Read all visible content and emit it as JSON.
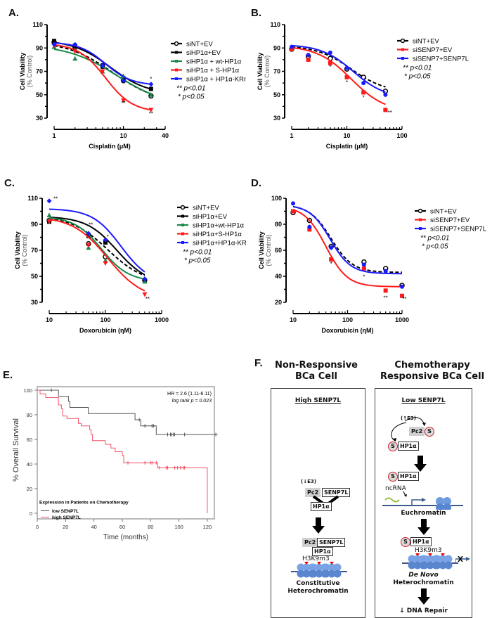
{
  "panels": {
    "A": "A.",
    "B": "B.",
    "C": "C.",
    "D": "D.",
    "E": "E.",
    "F": "F."
  },
  "colors": {
    "black": "#000000",
    "green": "#1a8a4a",
    "red": "#ff1a1a",
    "blue": "#1a1aff",
    "km_low": "#555555",
    "km_high": "#ee5566"
  },
  "chart_data": [
    {
      "id": "A",
      "type": "line",
      "xscale": "log",
      "xlabel": "Cisplatin (μM)",
      "ylabel": "Cell Viability",
      "ylabel2": "(% Control)",
      "xlim": [
        1,
        40
      ],
      "ylim": [
        30,
        110
      ],
      "xticks": [
        1,
        10,
        40
      ],
      "yticks": [
        30,
        50,
        70,
        90,
        110
      ],
      "legend_position": "right",
      "x": [
        1,
        2,
        5,
        10,
        25
      ],
      "series": [
        {
          "name": "siNT+EV",
          "color": "#000000",
          "marker": "open-circle",
          "dashed": true,
          "values": [
            95,
            91,
            75,
            62,
            49
          ],
          "fit": {
            "top": 96,
            "bottom": 42,
            "ec50": 7,
            "hill": 1.3
          }
        },
        {
          "name": "siHP1α+EV",
          "color": "#000000",
          "marker": "square",
          "dashed": false,
          "values": [
            96,
            92,
            74,
            64,
            55
          ],
          "fit": {
            "top": 97,
            "bottom": 50,
            "ec50": 6.5,
            "hill": 1.6
          }
        },
        {
          "name": "siHP1α + wt-HP1α",
          "color": "#1a8a4a",
          "marker": "triangle",
          "dashed": false,
          "values": [
            91,
            81,
            70,
            66,
            50
          ],
          "fit": {
            "top": 93,
            "bottom": 40,
            "ec50": 8,
            "hill": 1.2
          }
        },
        {
          "name": "siHP1α + S-HP1α",
          "color": "#ff1a1a",
          "marker": "inv-triangle",
          "dashed": false,
          "values": [
            92,
            87,
            70,
            45,
            37
          ],
          "fit": {
            "top": 94,
            "bottom": 35,
            "ec50": 5.5,
            "hill": 2.2
          }
        },
        {
          "name": "siHP1α + HP1α-KRm",
          "color": "#1a1aff",
          "marker": "diamond",
          "dashed": false,
          "values": [
            93,
            93,
            75,
            62,
            59
          ],
          "fit": {
            "top": 95,
            "bottom": 58,
            "ec50": 5.5,
            "hill": 2.3
          }
        }
      ],
      "annotations": [
        {
          "text": "**",
          "x": 10,
          "y": 41
        },
        {
          "text": "**",
          "x": 25,
          "y": 32
        },
        {
          "text": "*",
          "x": 25,
          "y": 62
        }
      ],
      "sig_legend": [
        "** p<0.01",
        "* p<0.05"
      ]
    },
    {
      "id": "B",
      "type": "line",
      "xscale": "log",
      "xlabel": "Cisplatin (μM)",
      "ylabel": "Cell Viability",
      "ylabel2": "(% Control)",
      "xlim": [
        1,
        100
      ],
      "ylim": [
        30,
        110
      ],
      "xticks": [
        1,
        10,
        100
      ],
      "yticks": [
        30,
        50,
        70,
        90,
        110
      ],
      "legend_position": "right",
      "x": [
        1,
        2,
        5,
        10,
        20,
        50
      ],
      "series": [
        {
          "name": "siNT+EV",
          "color": "#000000",
          "marker": "open-circle",
          "dashed": true,
          "values": [
            89,
            83,
            81,
            72,
            65,
            53
          ],
          "fit": {
            "top": 92,
            "bottom": 52,
            "ec50": 12,
            "hill": 1.4
          }
        },
        {
          "name": "siSENP7+EV",
          "color": "#ff1a1a",
          "marker": "square",
          "dashed": false,
          "values": [
            89,
            80,
            77,
            65,
            52,
            37
          ],
          "fit": {
            "top": 92,
            "bottom": 35,
            "ec50": 12,
            "hill": 1.4
          }
        },
        {
          "name": "siSENP7+SENP7L",
          "color": "#1a1aff",
          "marker": "circle",
          "dashed": false,
          "values": [
            91,
            84,
            86,
            73,
            60,
            50
          ],
          "fit": {
            "top": 93,
            "bottom": 47,
            "ec50": 13,
            "hill": 1.5
          }
        }
      ],
      "annotations": [
        {
          "text": "*",
          "x": 5,
          "y": 72
        },
        {
          "text": "*",
          "x": 10,
          "y": 59
        },
        {
          "text": "*",
          "x": 20,
          "y": 46
        },
        {
          "text": "**",
          "x": 60,
          "y": 33
        }
      ],
      "sig_legend": [
        "** p<0.01",
        "* p<0.05"
      ]
    },
    {
      "id": "C",
      "type": "line",
      "xscale": "log",
      "xlabel": "Doxorubicin (ηM)",
      "ylabel": "Cell Viability",
      "ylabel2": "(% Control)",
      "xlim": [
        10,
        1000
      ],
      "ylim": [
        30,
        110
      ],
      "xticks": [
        10,
        100,
        1000
      ],
      "yticks": [
        30,
        50,
        70,
        90,
        110
      ],
      "legend_position": "right",
      "x": [
        10,
        50,
        100,
        500
      ],
      "series": [
        {
          "name": "siNT+EV",
          "color": "#000000",
          "marker": "open-circle",
          "dashed": true,
          "values": [
            93,
            75,
            65,
            47
          ],
          "fit": {
            "top": 97,
            "bottom": 44,
            "ec50": 110,
            "hill": 1.3
          }
        },
        {
          "name": "siHP1α+EV",
          "color": "#000000",
          "marker": "square",
          "dashed": false,
          "values": [
            92,
            81,
            76,
            47
          ],
          "fit": {
            "top": 96,
            "bottom": 44,
            "ec50": 160,
            "hill": 1.6
          }
        },
        {
          "name": "siHP1α+wt-HP1α",
          "color": "#1a8a4a",
          "marker": "triangle",
          "dashed": false,
          "values": [
            97,
            72,
            62,
            46
          ],
          "fit": {
            "top": 96,
            "bottom": 46,
            "ec50": 85,
            "hill": 1.8
          }
        },
        {
          "name": "siHP1α+S-HP1α",
          "color": "#ff1a1a",
          "marker": "inv-triangle",
          "dashed": false,
          "values": [
            92,
            74,
            60,
            36
          ],
          "fit": {
            "top": 96,
            "bottom": 32,
            "ec50": 110,
            "hill": 1.4
          }
        },
        {
          "name": "siHP1α+HP1α-KRm",
          "color": "#1a1aff",
          "marker": "diamond",
          "dashed": false,
          "values": [
            108,
            83,
            78,
            48
          ],
          "fit": {
            "top": 102,
            "bottom": 44,
            "ec50": 190,
            "hill": 1.7
          }
        }
      ],
      "annotations": [
        {
          "text": "**",
          "x": 13,
          "y": 108
        },
        {
          "text": "**",
          "x": 55,
          "y": 88
        },
        {
          "text": "*",
          "x": 110,
          "y": 79
        },
        {
          "text": "**",
          "x": 560,
          "y": 31
        }
      ],
      "sig_legend": [
        "** p<0.01",
        "* p<0.05"
      ]
    },
    {
      "id": "D",
      "type": "line",
      "xscale": "log",
      "xlabel": "Doxorubicin (ηM)",
      "ylabel": "Cell Viability",
      "ylabel2": "(% Control)",
      "xlim": [
        10,
        1000
      ],
      "ylim": [
        20,
        100
      ],
      "xticks": [
        10,
        100,
        1000
      ],
      "yticks": [
        20,
        40,
        60,
        80,
        100
      ],
      "legend_position": "right",
      "x": [
        10,
        20,
        50,
        200,
        500,
        1000
      ],
      "series": [
        {
          "name": "siNT+EV",
          "color": "#000000",
          "marker": "open-circle",
          "dashed": true,
          "values": [
            89,
            83,
            63,
            51,
            46,
            33
          ],
          "fit": {
            "top": 95,
            "bottom": 43,
            "ec50": 50,
            "hill": 2.2
          }
        },
        {
          "name": "siSENP7+EV",
          "color": "#ff1a1a",
          "marker": "square",
          "dashed": false,
          "values": [
            90,
            76,
            53,
            46,
            29,
            25
          ],
          "fit": {
            "top": 94,
            "bottom": 32,
            "ec50": 40,
            "hill": 2.2
          }
        },
        {
          "name": "siSENP7+SENP7L",
          "color": "#1a1aff",
          "marker": "circle",
          "dashed": false,
          "values": [
            96,
            78,
            62,
            49,
            44,
            32
          ],
          "fit": {
            "top": 95,
            "bottom": 42,
            "ec50": 48,
            "hill": 2.3
          }
        }
      ],
      "annotations": [
        {
          "text": "*",
          "x": 50,
          "y": 48
        },
        {
          "text": "*",
          "x": 200,
          "y": 38
        },
        {
          "text": "**",
          "x": 500,
          "y": 22
        },
        {
          "text": "**",
          "x": 1100,
          "y": 21
        }
      ],
      "sig_legend": [
        "** p<0.01",
        "* p<0.05"
      ]
    },
    {
      "id": "E",
      "type": "line",
      "subtype": "kaplan-meier",
      "xlabel": "Time (months)",
      "ylabel": "% Overall Survival",
      "xlim": [
        0,
        125
      ],
      "ylim": [
        0,
        100
      ],
      "xticks": [
        0,
        20,
        40,
        60,
        80,
        100,
        120
      ],
      "yticks": [
        0,
        20,
        40,
        60,
        80,
        100
      ],
      "stats": [
        "HR = 2.6 (1.11-6.11)",
        "log rank p = 0.023"
      ],
      "legend_title": "Expression in Patients on Chemotherapy",
      "legend_position": "bottom-left",
      "series": [
        {
          "name": "low SENP7L",
          "color": "#555555",
          "steps": [
            [
              0,
              100
            ],
            [
              15,
              100
            ],
            [
              15,
              95
            ],
            [
              22,
              95
            ],
            [
              22,
              91
            ],
            [
              23,
              91
            ],
            [
              23,
              86
            ],
            [
              36,
              86
            ],
            [
              36,
              81
            ],
            [
              69,
              81
            ],
            [
              69,
              76
            ],
            [
              73,
              76
            ],
            [
              73,
              71
            ],
            [
              84,
              71
            ],
            [
              84,
              64
            ],
            [
              125,
              64
            ]
          ],
          "censored": [
            [
              10,
              100
            ],
            [
              72,
              76
            ],
            [
              76,
              71
            ],
            [
              81,
              71
            ],
            [
              82,
              71
            ],
            [
              92,
              64
            ],
            [
              94,
              64
            ],
            [
              95,
              64
            ],
            [
              96,
              64
            ],
            [
              97,
              64
            ],
            [
              104,
              64
            ],
            [
              126,
              64
            ]
          ]
        },
        {
          "name": "high SENP7L",
          "color": "#ee5566",
          "steps": [
            [
              0,
              100
            ],
            [
              2,
              100
            ],
            [
              2,
              97
            ],
            [
              6,
              97
            ],
            [
              6,
              94
            ],
            [
              15,
              94
            ],
            [
              15,
              88
            ],
            [
              17,
              88
            ],
            [
              17,
              85
            ],
            [
              18,
              85
            ],
            [
              18,
              79
            ],
            [
              21,
              79
            ],
            [
              21,
              77
            ],
            [
              29,
              77
            ],
            [
              29,
              73
            ],
            [
              31,
              73
            ],
            [
              31,
              71
            ],
            [
              37,
              71
            ],
            [
              37,
              68
            ],
            [
              38,
              68
            ],
            [
              38,
              64
            ],
            [
              39,
              64
            ],
            [
              39,
              59
            ],
            [
              48,
              59
            ],
            [
              48,
              56
            ],
            [
              52,
              56
            ],
            [
              52,
              53
            ],
            [
              55,
              53
            ],
            [
              55,
              50
            ],
            [
              60,
              50
            ],
            [
              60,
              47
            ],
            [
              61,
              47
            ],
            [
              61,
              41
            ],
            [
              85,
              41
            ],
            [
              85,
              37
            ],
            [
              120,
              37
            ],
            [
              120,
              0
            ]
          ],
          "censored": [
            [
              64,
              41
            ],
            [
              76,
              41
            ],
            [
              80,
              41
            ],
            [
              81,
              41
            ],
            [
              84,
              41
            ],
            [
              86,
              37
            ],
            [
              91,
              37
            ],
            [
              92,
              37
            ],
            [
              97,
              37
            ],
            [
              99,
              37
            ],
            [
              101,
              37
            ],
            [
              103,
              37
            ],
            [
              104,
              37
            ]
          ]
        }
      ]
    }
  ],
  "panelF": {
    "left_title": [
      "Non-Responsive",
      "BCa Cell"
    ],
    "right_title": [
      "Chemotherapy",
      "Responsive BCa Cell"
    ],
    "left_sub": "High SENP7L",
    "right_sub": "Low SENP7L",
    "e3_down": "(↓E3)",
    "e3_up": "(↑E3)",
    "pc2": "Pc2",
    "senp7l": "SENP7L",
    "hp1a": "HP1α",
    "sumo": "S",
    "h3k9m3": "H3K9m3",
    "ncrna": "ncRNA",
    "constitutive": "Constitutive",
    "heterochromatin": "Heterochromatin",
    "euchromatin": "Euchromatin",
    "denovo": "De Novo",
    "dna_repair": "↓ DNA Repair",
    "x_mark": "X"
  }
}
